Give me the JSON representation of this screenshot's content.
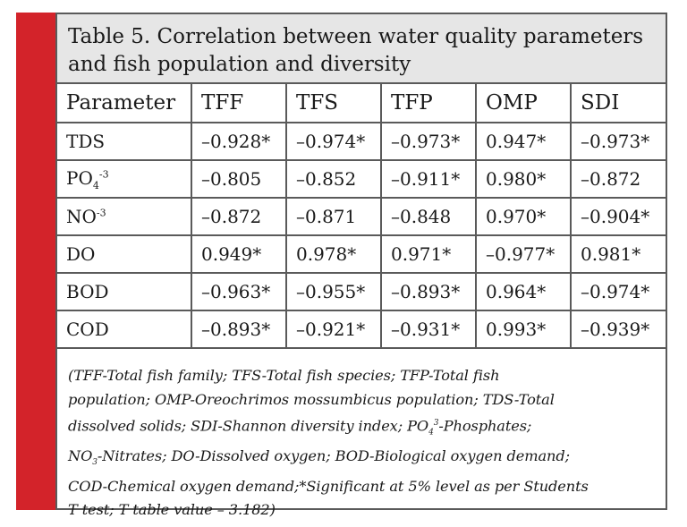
{
  "caption": {
    "line1": "Table 5. Correlation between water quality parameters",
    "line2": "and fish population and diversity"
  },
  "colors": {
    "accent_bar": "#d3232a",
    "caption_bg": "#e6e6e6",
    "border": "#5a5a5a"
  },
  "table": {
    "headers": [
      "Parameter",
      "TFF",
      "TFS",
      "TFP",
      "OMP",
      "SDI"
    ],
    "rows": [
      {
        "param": {
          "base": "TDS",
          "script": ""
        },
        "values": [
          "–0.928*",
          "–0.974*",
          "–0.973*",
          "0.947*",
          "–0.973*"
        ]
      },
      {
        "param": {
          "base": "PO",
          "sub": "4",
          "sup": "-3"
        },
        "values": [
          "–0.805",
          "–0.852",
          "–0.911*",
          "0.980*",
          "–0.872"
        ]
      },
      {
        "param": {
          "base": "NO",
          "sup": "-3"
        },
        "values": [
          "–0.872",
          "–0.871",
          "–0.848",
          "0.970*",
          "–0.904*"
        ]
      },
      {
        "param": {
          "base": "DO"
        },
        "values": [
          "0.949*",
          "0.978*",
          "0.971*",
          "–0.977*",
          "0.981*"
        ]
      },
      {
        "param": {
          "base": "BOD"
        },
        "values": [
          "–0.963*",
          "–0.955*",
          "–0.893*",
          "0.964*",
          "–0.974*"
        ]
      },
      {
        "param": {
          "base": "COD"
        },
        "values": [
          "–0.893*",
          "–0.921*",
          "–0.931*",
          "0.993*",
          "–0.939*"
        ]
      }
    ]
  },
  "footnote": {
    "l1": "(TFF-Total fish family; TFS-Total fish species; TFP-Total fish",
    "l2": "population; OMP-Oreochrimos mossumbicus population; TDS-Total",
    "l3a": "dissolved solids; SDI-Shannon diversity index; PO",
    "l3sub": "4",
    "l3sup": "3",
    "l3b": "-Phosphates;",
    "l4a": "NO",
    "l4sub": "3",
    "l4b": "-Nitrates; DO-Dissolved oxygen; BOD-Biological oxygen demand;",
    "l5": "COD-Chemical oxygen demand;*Significant at 5% level as per Students",
    "l6": "T test; T table value – 3.182)"
  }
}
